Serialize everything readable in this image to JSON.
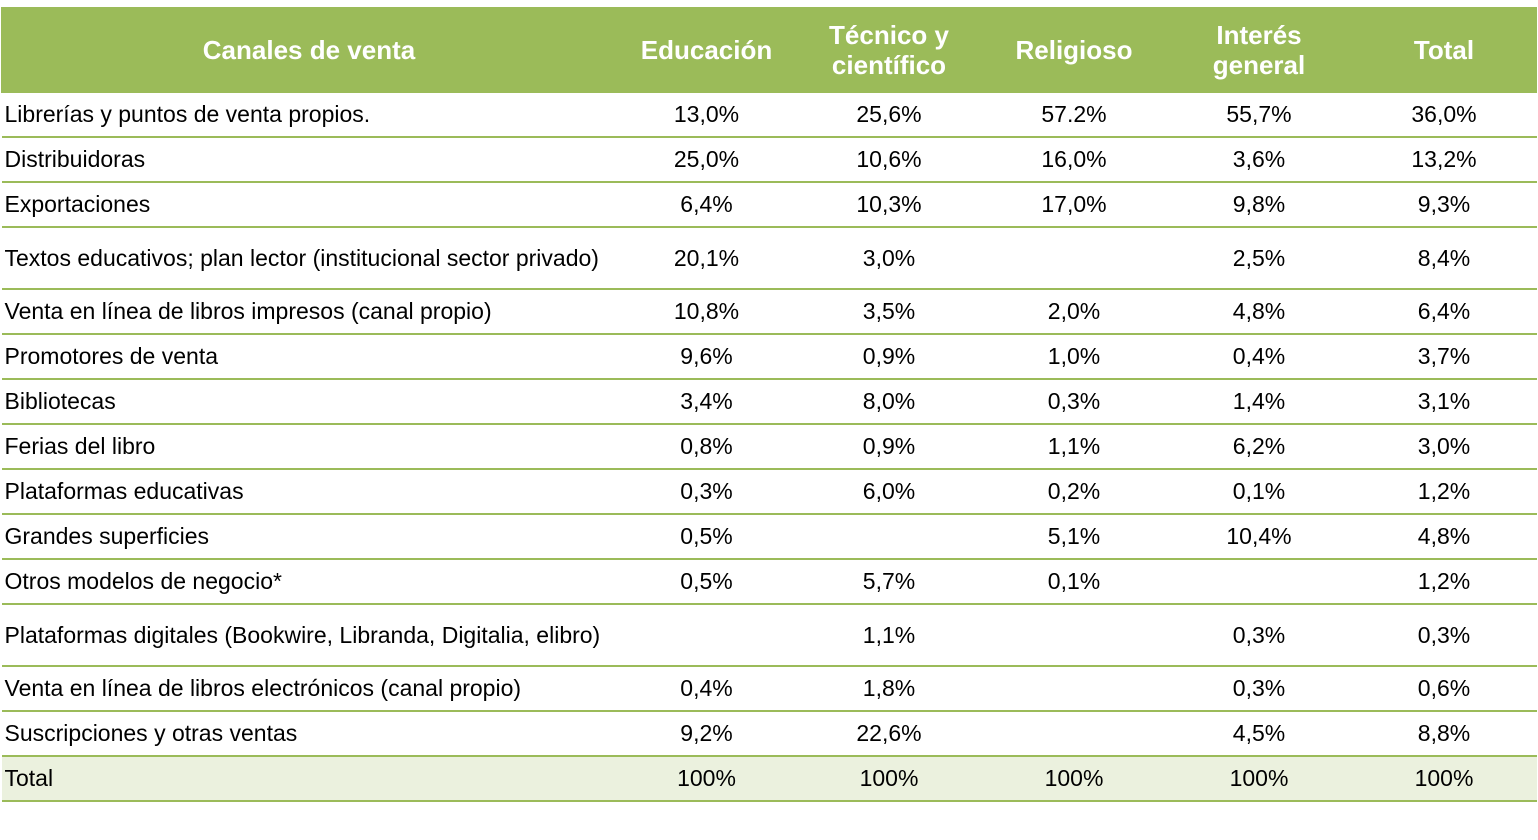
{
  "table": {
    "headers": [
      "Canales de venta",
      "Educación",
      "Técnico y científico",
      "Religioso",
      "Interés general",
      "Total"
    ],
    "rows": [
      [
        "Librerías y puntos de venta propios.",
        "13,0%",
        "25,6%",
        "57.2%",
        "55,7%",
        "36,0%"
      ],
      [
        "Distribuidoras",
        "25,0%",
        "10,6%",
        "16,0%",
        "3,6%",
        "13,2%"
      ],
      [
        "Exportaciones",
        "6,4%",
        "10,3%",
        "17,0%",
        "9,8%",
        "9,3%"
      ],
      [
        "Textos educativos; plan lector (institucional sector privado)",
        "20,1%",
        "3,0%",
        "",
        "2,5%",
        "8,4%"
      ],
      [
        "Venta en línea de libros impresos (canal propio)",
        "10,8%",
        "3,5%",
        "2,0%",
        "4,8%",
        "6,4%"
      ],
      [
        "Promotores de venta",
        "9,6%",
        "0,9%",
        "1,0%",
        "0,4%",
        "3,7%"
      ],
      [
        "Bibliotecas",
        "3,4%",
        "8,0%",
        "0,3%",
        "1,4%",
        "3,1%"
      ],
      [
        "Ferias del libro",
        "0,8%",
        "0,9%",
        "1,1%",
        "6,2%",
        "3,0%"
      ],
      [
        "Plataformas educativas",
        "0,3%",
        "6,0%",
        "0,2%",
        "0,1%",
        "1,2%"
      ],
      [
        "Grandes superficies",
        "0,5%",
        "",
        "5,1%",
        "10,4%",
        "4,8%"
      ],
      [
        "Otros modelos de negocio*",
        "0,5%",
        "5,7%",
        "0,1%",
        "",
        "1,2%"
      ],
      [
        "Plataformas digitales (Bookwire, Libranda, Digitalia, elibro)",
        "",
        "1,1%",
        "",
        "0,3%",
        "0,3%"
      ],
      [
        "Venta en línea de libros electrónicos (canal propio)",
        "0,4%",
        "1,8%",
        "",
        "0,3%",
        "0,6%"
      ],
      [
        "Suscripciones y otras ventas",
        "9,2%",
        "22,6%",
        "",
        "4,5%",
        "8,8%"
      ]
    ],
    "total_row": [
      "Total",
      "100%",
      "100%",
      "100%",
      "100%",
      "100%"
    ]
  },
  "colors": {
    "header_bg": "#9bbb59",
    "header_text": "#ffffff",
    "rule": "#9bbb59",
    "total_bg": "#ebf1de"
  }
}
